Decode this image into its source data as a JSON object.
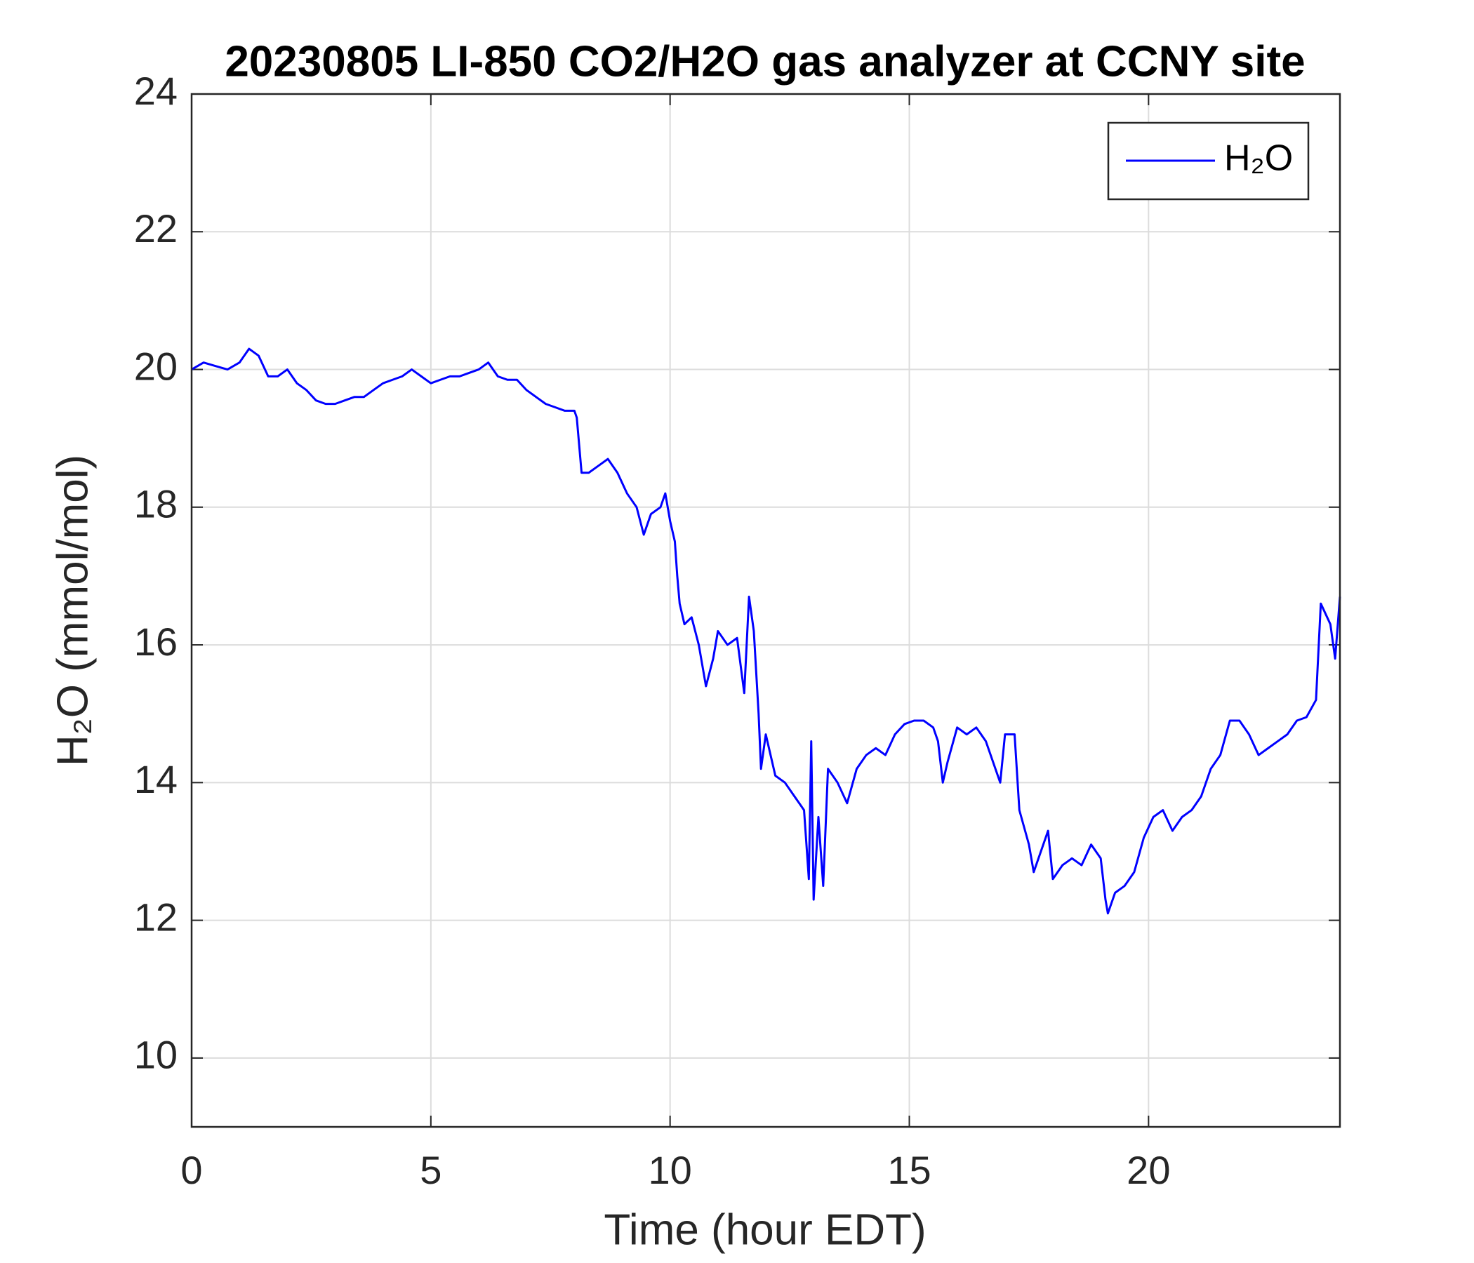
{
  "chart_data": {
    "type": "line",
    "title": "20230805 LI-850 CO2/H2O gas analyzer at CCNY site",
    "x_label": "Time (hour EDT)",
    "y_label": "H₂O (mmol/mol)",
    "x": [
      0,
      0.25,
      0.5,
      0.75,
      1.0,
      1.2,
      1.4,
      1.6,
      1.8,
      2.0,
      2.2,
      2.4,
      2.6,
      2.8,
      3.0,
      3.2,
      3.4,
      3.6,
      3.8,
      4.0,
      4.2,
      4.4,
      4.6,
      4.8,
      5.0,
      5.2,
      5.4,
      5.6,
      5.8,
      6.0,
      6.2,
      6.4,
      6.6,
      6.8,
      7.0,
      7.2,
      7.4,
      7.6,
      7.8,
      8.0,
      8.05,
      8.15,
      8.3,
      8.5,
      8.7,
      8.9,
      9.1,
      9.3,
      9.45,
      9.6,
      9.8,
      9.9,
      10.0,
      10.1,
      10.15,
      10.2,
      10.3,
      10.45,
      10.6,
      10.75,
      10.9,
      11.0,
      11.2,
      11.4,
      11.55,
      11.65,
      11.75,
      11.85,
      11.9,
      12.0,
      12.2,
      12.4,
      12.6,
      12.8,
      12.9,
      12.95,
      13.0,
      13.1,
      13.2,
      13.3,
      13.5,
      13.7,
      13.9,
      14.1,
      14.3,
      14.5,
      14.7,
      14.9,
      15.1,
      15.3,
      15.5,
      15.6,
      15.7,
      15.8,
      16.0,
      16.2,
      16.4,
      16.6,
      16.8,
      16.9,
      17.0,
      17.2,
      17.3,
      17.5,
      17.6,
      17.8,
      17.9,
      18.0,
      18.2,
      18.4,
      18.6,
      18.8,
      19.0,
      19.1,
      19.15,
      19.3,
      19.5,
      19.7,
      19.9,
      20.1,
      20.3,
      20.5,
      20.7,
      20.9,
      21.1,
      21.3,
      21.5,
      21.7,
      21.9,
      22.1,
      22.3,
      22.5,
      22.7,
      22.9,
      23.1,
      23.3,
      23.5,
      23.6,
      23.8,
      23.9,
      24.0
    ],
    "series": [
      {
        "name": "H₂O",
        "color": "#0000ff",
        "values": [
          20.0,
          20.1,
          20.05,
          20.0,
          20.1,
          20.3,
          20.2,
          19.9,
          19.9,
          20.0,
          19.8,
          19.7,
          19.55,
          19.5,
          19.5,
          19.55,
          19.6,
          19.6,
          19.7,
          19.8,
          19.85,
          19.9,
          20.0,
          19.9,
          19.8,
          19.85,
          19.9,
          19.9,
          19.95,
          20.0,
          20.1,
          19.9,
          19.85,
          19.85,
          19.7,
          19.6,
          19.5,
          19.45,
          19.4,
          19.4,
          19.3,
          18.5,
          18.5,
          18.6,
          18.7,
          18.5,
          18.2,
          18.0,
          17.6,
          17.9,
          18.0,
          18.2,
          17.8,
          17.5,
          17.0,
          16.6,
          16.3,
          16.4,
          16.0,
          15.4,
          15.8,
          16.2,
          16.0,
          16.1,
          15.3,
          16.7,
          16.2,
          15.0,
          14.2,
          14.7,
          14.1,
          14.0,
          13.8,
          13.6,
          12.6,
          14.6,
          12.3,
          13.5,
          12.5,
          14.2,
          14.0,
          13.7,
          14.2,
          14.4,
          14.5,
          14.4,
          14.7,
          14.85,
          14.9,
          14.9,
          14.8,
          14.6,
          14.0,
          14.3,
          14.8,
          14.7,
          14.8,
          14.6,
          14.2,
          14.0,
          14.7,
          14.7,
          13.6,
          13.1,
          12.7,
          13.1,
          13.3,
          12.6,
          12.8,
          12.9,
          12.8,
          13.1,
          12.9,
          12.3,
          12.1,
          12.4,
          12.5,
          12.7,
          13.2,
          13.5,
          13.6,
          13.3,
          13.5,
          13.6,
          13.8,
          14.2,
          14.4,
          14.9,
          14.9,
          14.7,
          14.4,
          14.5,
          14.6,
          14.7,
          14.9,
          14.95,
          15.2,
          16.6,
          16.3,
          15.8,
          16.7
        ]
      }
    ],
    "xlim": [
      0,
      24
    ],
    "xticks": [
      0,
      5,
      10,
      15,
      20
    ],
    "ylim": [
      9,
      24
    ],
    "yticks": [
      10,
      12,
      14,
      16,
      18,
      20,
      22,
      24
    ],
    "grid": true,
    "legend": "northeast"
  }
}
